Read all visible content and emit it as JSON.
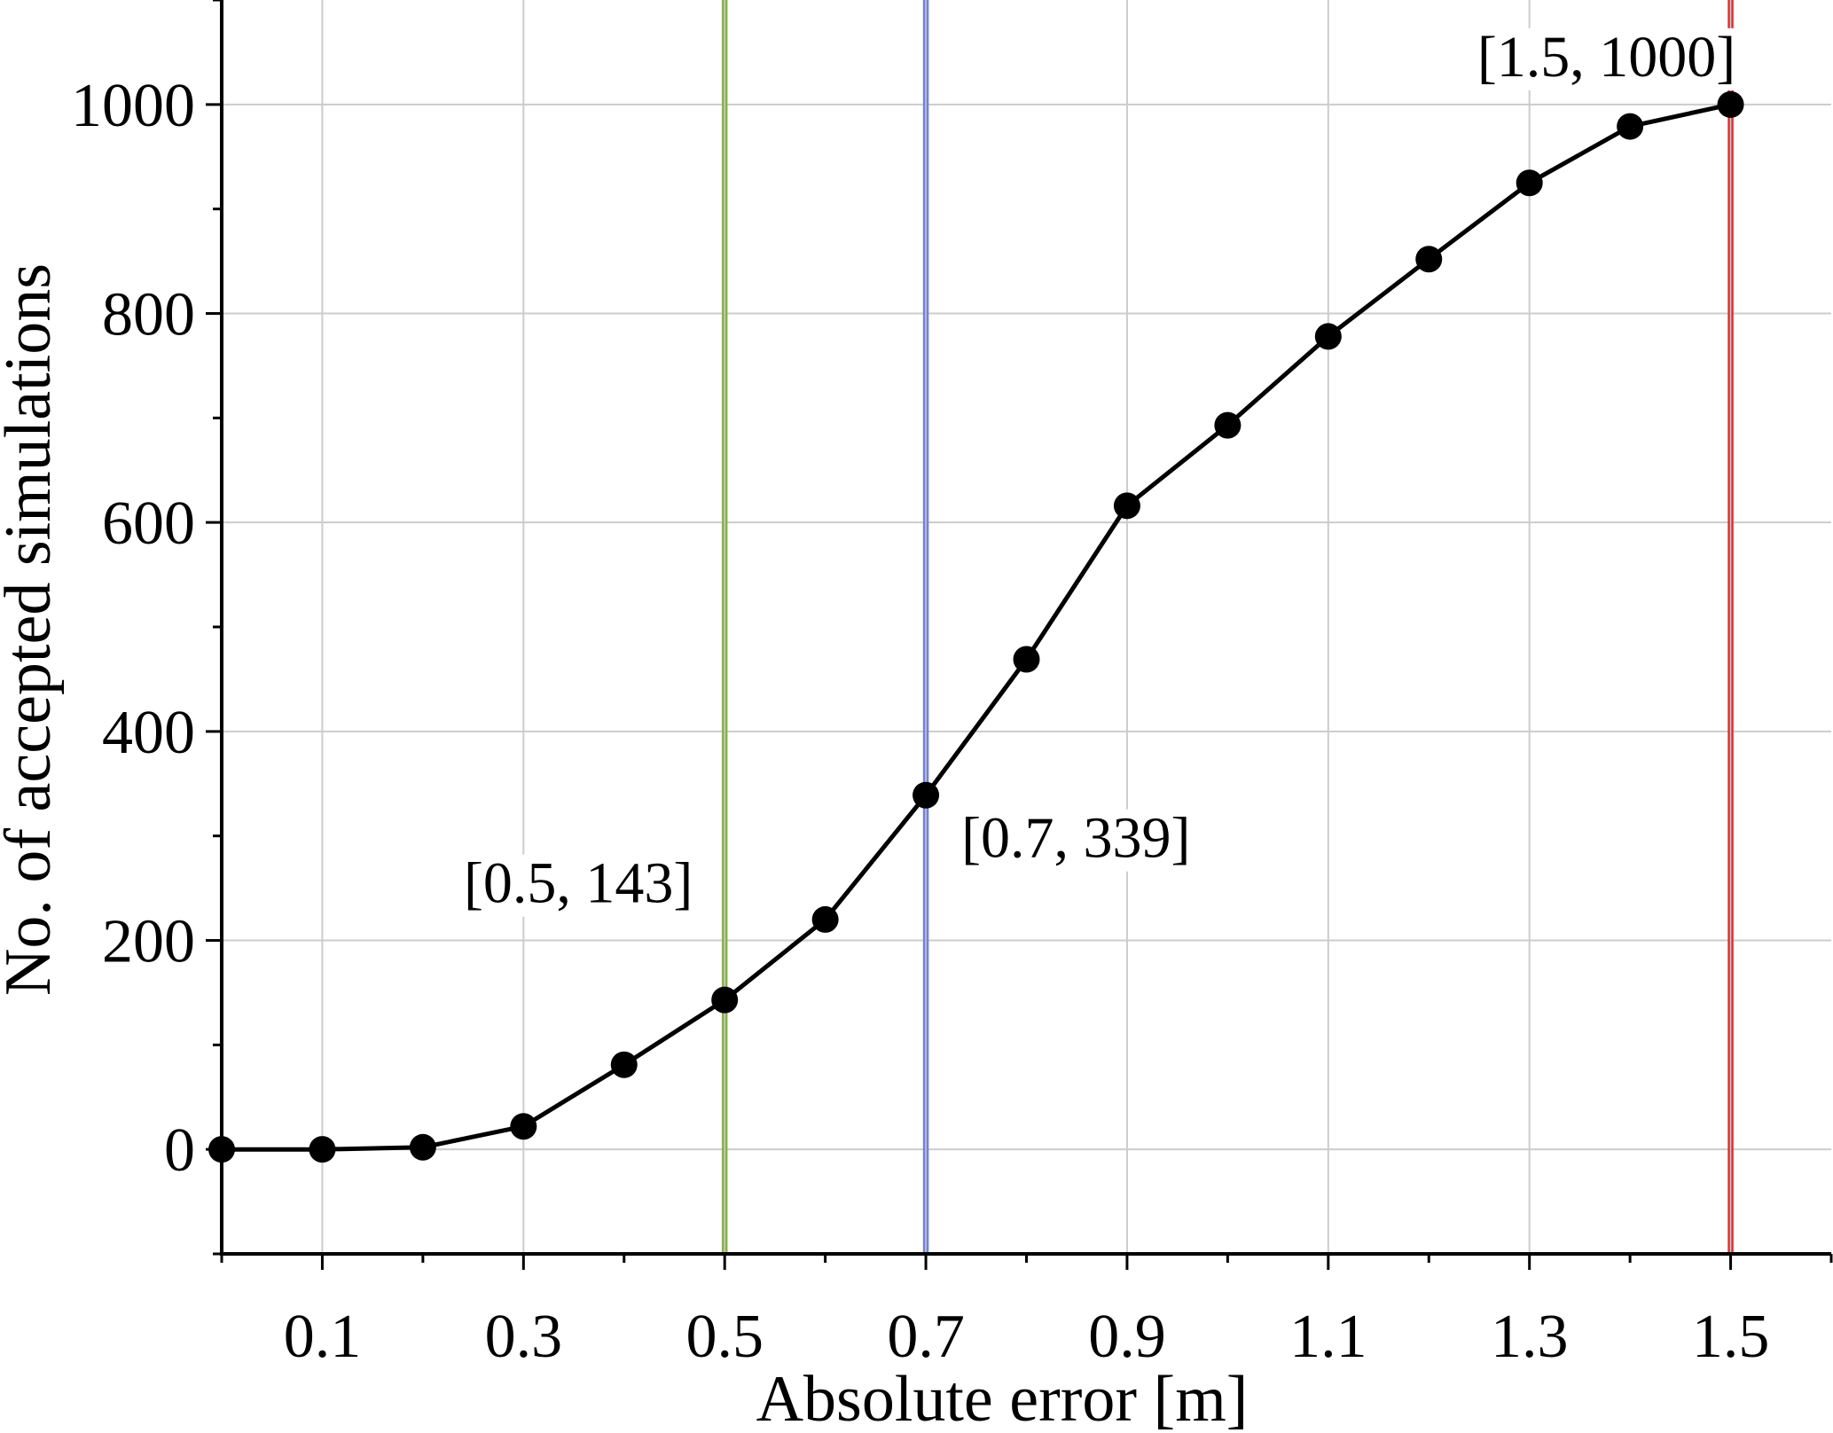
{
  "chart_data": {
    "type": "line",
    "title": "",
    "xlabel": "Absolute error [m]",
    "ylabel": "No. of accepted simulations",
    "xlim": [
      0.0,
      1.6
    ],
    "ylim": [
      -100,
      1100
    ],
    "x_ticks": [
      0.1,
      0.3,
      0.5,
      0.7,
      0.9,
      1.1,
      1.3,
      1.5
    ],
    "x_tick_labels": [
      "0.1",
      "0.3",
      "0.5",
      "0.7",
      "0.9",
      "1.1",
      "1.3",
      "1.5"
    ],
    "y_ticks": [
      0,
      200,
      400,
      600,
      800,
      1000
    ],
    "y_tick_labels": [
      "0",
      "200",
      "400",
      "600",
      "800",
      "1000"
    ],
    "grid": true,
    "series": [
      {
        "x": [
          0.0,
          0.1,
          0.2,
          0.3,
          0.4,
          0.5,
          0.6,
          0.7,
          0.8,
          0.9,
          1.0,
          1.1,
          1.2,
          1.3,
          1.4,
          1.5
        ],
        "y": [
          0,
          0,
          2,
          22,
          81,
          143,
          220,
          339,
          469,
          616,
          693,
          778,
          852,
          925,
          979,
          1000
        ],
        "color": "#000000"
      }
    ],
    "vertical_lines": [
      {
        "x": 0.5,
        "color": "#8ab04a"
      },
      {
        "x": 0.7,
        "color": "#7080dd"
      },
      {
        "x": 1.5,
        "color": "#e03030"
      }
    ],
    "annotations": [
      {
        "text": "[0.5, 143]",
        "x": 0.5,
        "y": 143
      },
      {
        "text": "[0.7, 339]",
        "x": 0.7,
        "y": 339
      },
      {
        "text": "[1.5, 1000]",
        "x": 1.5,
        "y": 1000
      }
    ]
  }
}
